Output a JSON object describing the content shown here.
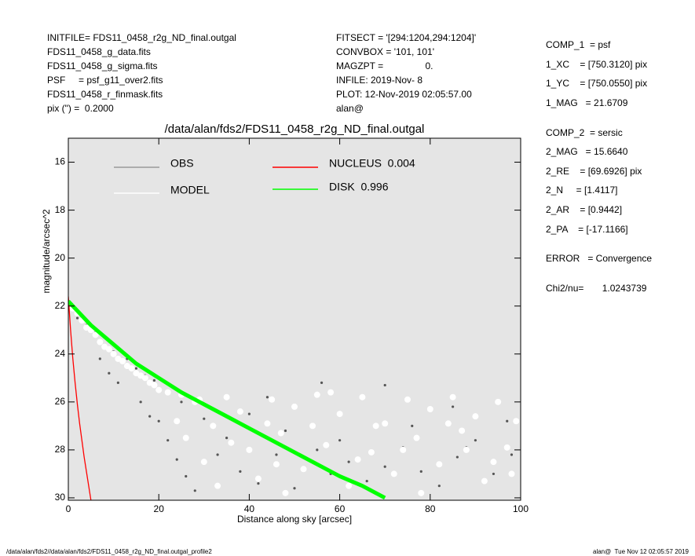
{
  "chart_data": {
    "type": "scatter",
    "title": "/data/alan/fds2/FDS11_0458_r2g_ND_final.outgal",
    "x_label": "Distance along sky [arcsec]",
    "y_label": "magnitude/arcsec^2",
    "xlim": [
      0,
      100
    ],
    "ylim": [
      30.1,
      15
    ],
    "xticks": [
      0,
      20,
      40,
      60,
      80,
      100
    ],
    "yticks": [
      16,
      18,
      20,
      22,
      24,
      26,
      28,
      30
    ],
    "background": "#e5e5e5",
    "info_left": [
      "INITFILE= FDS11_0458_r2g_ND_final.outgal",
      "FDS11_0458_g_data.fits",
      "FDS11_0458_g_sigma.fits",
      "PSF     = psf_g11_over2.fits",
      "FDS11_0458_r_finmask.fits",
      "pix (\") =  0.2000"
    ],
    "info_middle": [
      "FITSECT = '[294:1204,294:1204]'",
      "CONVBOX = '101, 101'",
      "MAGZPT =                0.",
      "INFILE: 2019-Nov- 8",
      "PLOT: 12-Nov-2019 02:05:57.00",
      "alan@"
    ],
    "info_right": [
      "COMP_1  = psf",
      "1_XC    = [750.3120] pix",
      "1_YC    = [750.0550] pix",
      "1_MAG   = 21.6709",
      "COMP_2  = sersic",
      "2_MAG   = 15.6640",
      "2_RE    = [69.6926] pix",
      "2_N     = [1.4117]",
      "2_AR    = [0.9442]",
      "2_PA    = [-17.1166]",
      "ERROR   = Convergence",
      "Chi2/nu=       1.0243739"
    ],
    "footer_left": "/data/alan/fds2//data/alan/fds2/FDS11_0458_r2g_ND_final.outgal_profile2",
    "footer_right": "alan@  Tue Nov 12 02:05:57 2019",
    "series": [
      {
        "name": "OBS",
        "color": "#555555",
        "kind": "points",
        "x": [
          2,
          4,
          6,
          8,
          10,
          12,
          7,
          9,
          11,
          13,
          15,
          17,
          19,
          16,
          18,
          20,
          22,
          24,
          26,
          28,
          25,
          30,
          35,
          38,
          42,
          46,
          50,
          55,
          58,
          62,
          66,
          70,
          74,
          78,
          82,
          86,
          90,
          94,
          98,
          56,
          70,
          85,
          97,
          40,
          48,
          60,
          76,
          88,
          33,
          44
        ],
        "values": [
          22.5,
          22.8,
          23.1,
          23.3,
          23.9,
          24.3,
          24.2,
          24.8,
          25.2,
          24.2,
          24.6,
          24.9,
          25.1,
          26.0,
          26.6,
          26.8,
          27.6,
          28.4,
          29.1,
          29.7,
          26.0,
          26.7,
          27.5,
          28.9,
          29.4,
          28.2,
          29.6,
          28.0,
          29.0,
          28.5,
          29.3,
          28.7,
          27.9,
          28.9,
          29.5,
          28.3,
          27.6,
          29.0,
          28.2,
          25.2,
          25.3,
          26.2,
          26.8,
          26.5,
          27.2,
          27.6,
          27.0,
          27.9,
          28.2,
          25.8
        ]
      },
      {
        "name": "MODEL",
        "color": "#ffffff",
        "kind": "points",
        "x": [
          1,
          2,
          3,
          4,
          5,
          6,
          7,
          8,
          9,
          10,
          11,
          12,
          13,
          14,
          15,
          16,
          17,
          18,
          19,
          20,
          22,
          25,
          28,
          24,
          26,
          30,
          32,
          35,
          38,
          40,
          42,
          45,
          47,
          50,
          52,
          55,
          57,
          60,
          62,
          65,
          67,
          70,
          72,
          75,
          77,
          80,
          82,
          85,
          87,
          90,
          92,
          95,
          97,
          99,
          33,
          48,
          58,
          68,
          78,
          88,
          98,
          44,
          54,
          64,
          74,
          84,
          94,
          36,
          29,
          46
        ],
        "values": [
          22.1,
          22.3,
          22.6,
          22.9,
          23.0,
          23.2,
          23.5,
          23.7,
          23.8,
          24.0,
          24.2,
          24.3,
          24.5,
          24.6,
          24.8,
          24.9,
          25.0,
          25.2,
          25.3,
          25.5,
          25.6,
          25.7,
          26.0,
          26.8,
          27.5,
          28.5,
          27.0,
          25.8,
          26.4,
          28.0,
          29.2,
          25.9,
          27.3,
          26.2,
          28.8,
          25.7,
          27.8,
          26.5,
          29.5,
          25.8,
          28.1,
          26.9,
          29.0,
          25.9,
          27.5,
          26.3,
          28.6,
          25.8,
          27.2,
          26.6,
          29.3,
          26.0,
          27.9,
          26.8,
          29.5,
          29.8,
          25.6,
          27.0,
          29.8,
          28.0,
          29.0,
          26.9,
          27.0,
          28.4,
          28.0,
          26.9,
          28.5,
          27.7,
          25.9,
          28.6
        ]
      },
      {
        "name": "NUCLEUS  0.004",
        "color": "#ff0000",
        "kind": "line",
        "x": [
          0,
          0.5,
          1,
          1.5,
          2,
          2.5,
          3,
          3.5,
          4,
          4.5,
          5
        ],
        "values": [
          21.6,
          23.0,
          24.2,
          25.2,
          26.1,
          26.9,
          27.6,
          28.3,
          28.9,
          29.5,
          30.1
        ]
      },
      {
        "name": "DISK  0.996",
        "color": "#00ff00",
        "kind": "band",
        "x": [
          0,
          5,
          10,
          15,
          20,
          25,
          30,
          35,
          40,
          45,
          50,
          55,
          60,
          65,
          70
        ],
        "values": [
          21.8,
          22.8,
          23.6,
          24.4,
          25.0,
          25.6,
          26.1,
          26.6,
          27.1,
          27.6,
          28.1,
          28.6,
          29.1,
          29.5,
          30.0
        ]
      }
    ]
  }
}
